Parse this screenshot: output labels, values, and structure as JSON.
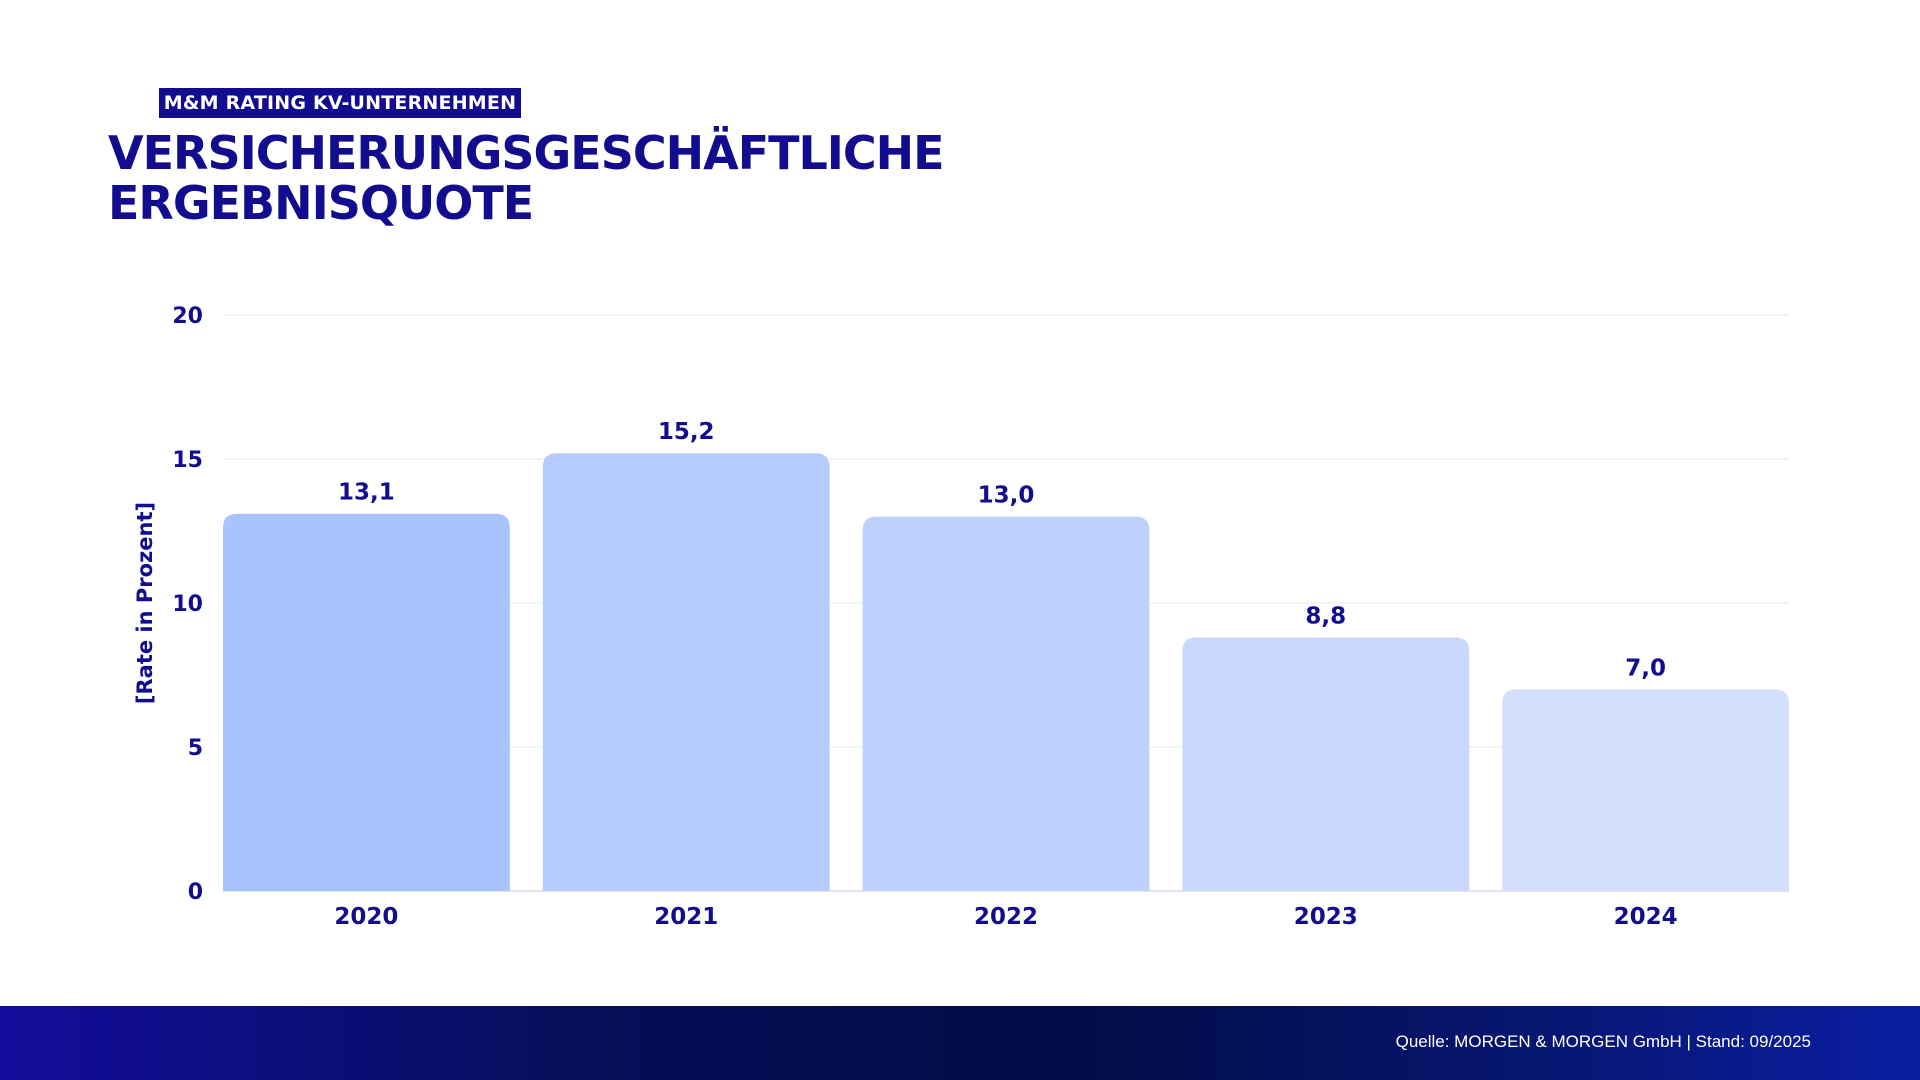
{
  "header": {
    "badge": "M&M RATING KV-UNTERNEHMEN",
    "title_line1": "VERSICHERUNGSGESCHÄFTLICHE",
    "title_line2": "ERGEBNISQUOTE"
  },
  "chart_data": {
    "type": "bar",
    "title": "VERSICHERUNGSGESCHÄFTLICHE ERGEBNISQUOTE",
    "categories": [
      "2020",
      "2021",
      "2022",
      "2023",
      "2024"
    ],
    "values": [
      13.1,
      15.2,
      13.0,
      8.8,
      7.0
    ],
    "data_labels": [
      "13,1",
      "15,2",
      "13,0",
      "8,8",
      "7,0"
    ],
    "ylabel": "[Rate in Prozent]",
    "xlabel": "",
    "ylim": [
      0,
      20
    ],
    "yticks": [
      "0",
      "5",
      "10",
      "15",
      "20"
    ],
    "grid": true,
    "bar_colors": [
      "#a9c4fd",
      "#b5cbfd",
      "#bed1fc",
      "#c8d8fd",
      "#d3e0fd"
    ],
    "text_color": "#120c8e"
  },
  "footer": {
    "source": "Quelle: MORGEN & MORGEN GmbH | Stand: 09/2025"
  }
}
